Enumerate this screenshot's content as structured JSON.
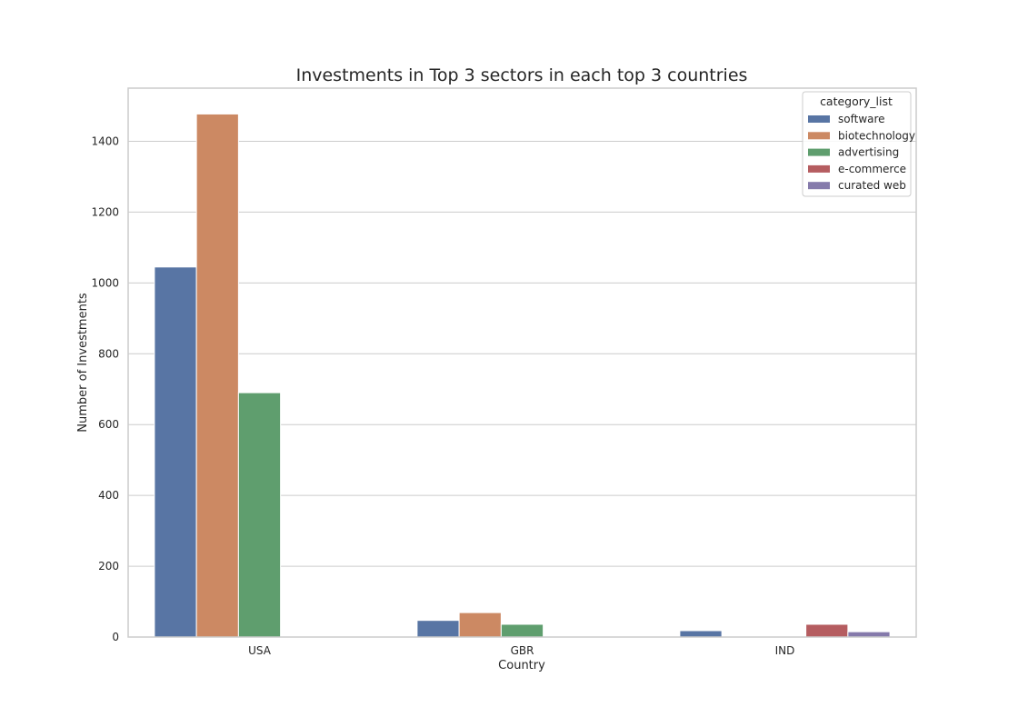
{
  "chart_data": {
    "type": "bar",
    "title": "Investments in Top 3 sectors in each top 3 countries",
    "xlabel": "Country",
    "ylabel": "Number of Investments",
    "categories": [
      "USA",
      "GBR",
      "IND"
    ],
    "ylim": [
      0,
      1550
    ],
    "yticks": [
      0,
      200,
      400,
      600,
      800,
      1000,
      1200,
      1400
    ],
    "grid": true,
    "legend": {
      "title": "category_list",
      "placement": "top-right"
    },
    "series": [
      {
        "name": "software",
        "color": "#5875a4",
        "values": [
          1045,
          47,
          18
        ]
      },
      {
        "name": "biotechnology",
        "color": "#cc8963",
        "values": [
          1477,
          69,
          null
        ]
      },
      {
        "name": "advertising",
        "color": "#5f9e6e",
        "values": [
          690,
          36,
          null
        ]
      },
      {
        "name": "e-commerce",
        "color": "#b55d60",
        "values": [
          null,
          null,
          36
        ]
      },
      {
        "name": "curated web",
        "color": "#857aab",
        "values": [
          null,
          null,
          15
        ]
      }
    ]
  }
}
